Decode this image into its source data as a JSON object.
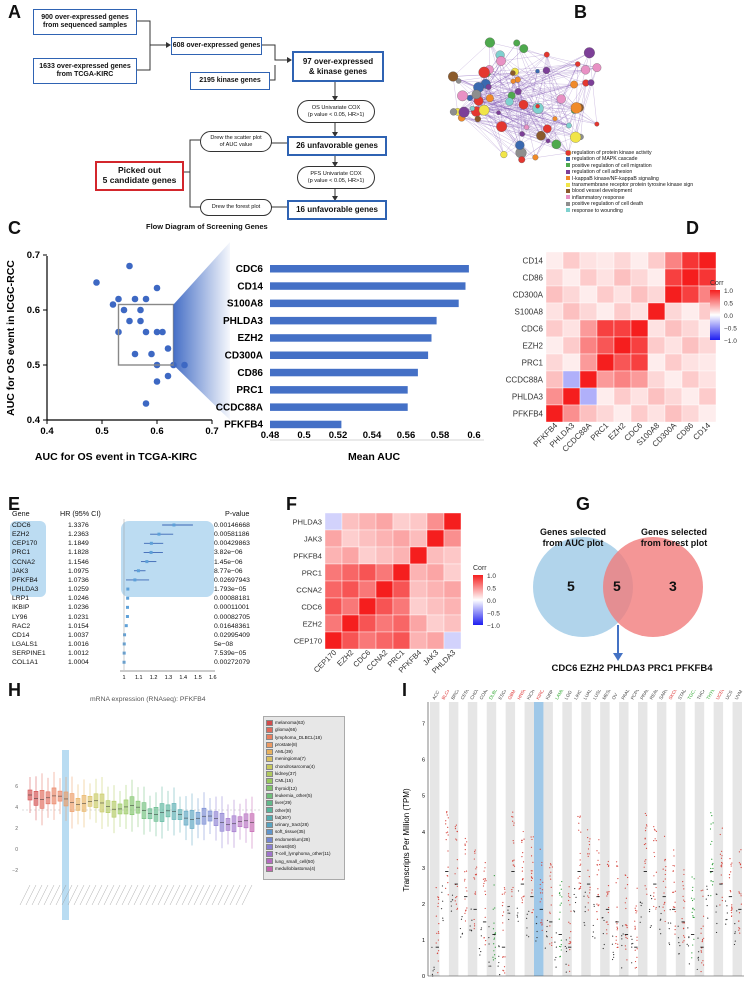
{
  "panelA": {
    "label": "A",
    "boxes": {
      "seq": "900 over-expressed genes\nfrom sequenced samples",
      "tcga": "1633 over-expressed genes\nfrom TCGA-KIRC",
      "overexp": "608 over-expressed genes",
      "kinase": "2195 kinase genes",
      "inter": "97 over-expressed\n& kinase genes",
      "unfav26": "26 unfavorable genes",
      "unfav16": "16 unfavorable genes",
      "picked": "Picked out\n5 candidate genes"
    },
    "ovals": {
      "os": "OS Univariate COX\n(p value < 0.05, HR>1)",
      "scatter": "Drew the scatter plot\nof AUC value",
      "pfs": "PFS Univariate COX\n(p value < 0.05, HR>1)",
      "forest": "Drew the forest plot"
    },
    "caption": "Flow Diagram of Screening Genes"
  },
  "panelB": {
    "label": "B",
    "legend": [
      {
        "text": "regulation of protein kinase activity",
        "color": "#e4362f"
      },
      {
        "text": "regulation of MAPK cascade",
        "color": "#3a69b0"
      },
      {
        "text": "positive regulation of cell migration",
        "color": "#4ea94d"
      },
      {
        "text": "regulation of cell adhesion",
        "color": "#7d3f98"
      },
      {
        "text": "I-kappaB kinase/NF-kappaB signaling",
        "color": "#f08a2a"
      },
      {
        "text": "transmembrane receptor protein tyrosine kinase sign",
        "color": "#f1e548"
      },
      {
        "text": "blood vessel development",
        "color": "#8b5a2b"
      },
      {
        "text": "inflammatory response",
        "color": "#e891c4"
      },
      {
        "text": "positive regulation of cell death",
        "color": "#8e8e8e"
      },
      {
        "text": "response to wounding",
        "color": "#7fd1cf"
      }
    ]
  },
  "panelC": {
    "label": "C",
    "scatter": {
      "ylabel": "AUC for OS event in ICGC-RCC",
      "xlabel": "AUC for OS event in TCGA-KIRC",
      "xticks": [
        "0.4",
        "0.5",
        "0.6",
        "0.7"
      ],
      "yticks": [
        "0.4",
        "0.5",
        "0.6",
        "0.7"
      ]
    },
    "bar": {
      "xlabel": "Mean AUC",
      "xticks": [
        "0.48",
        "0.5",
        "0.52",
        "0.54",
        "0.56",
        "0.58",
        "0.6"
      ]
    }
  },
  "panelD": {
    "label": "D",
    "genes": [
      "PFKFB4",
      "PHLDA3",
      "CCDC88A",
      "PRC1",
      "EZH2",
      "CDC6",
      "S100A8",
      "CD300A",
      "CD86",
      "CD14"
    ],
    "legend_title": "Corr",
    "legend_ticks": [
      "1.0",
      "0.5",
      "0.0",
      "−0.5",
      "−1.0"
    ]
  },
  "panelE": {
    "label": "E",
    "headers": {
      "gene": "Gene",
      "hr": "HR (95% CI)",
      "p": "P-value"
    },
    "rows": [
      {
        "gene": "CDC6",
        "hr": "1.3376",
        "p": "0.00146668"
      },
      {
        "gene": "EZH2",
        "hr": "1.2363",
        "p": "0.00581186"
      },
      {
        "gene": "CEP170",
        "hr": "1.1849",
        "p": "0.00429863"
      },
      {
        "gene": "PRC1",
        "hr": "1.1828",
        "p": "3.82e−06"
      },
      {
        "gene": "CCNA2",
        "hr": "1.1546",
        "p": "1.45e−06"
      },
      {
        "gene": "JAK3",
        "hr": "1.0975",
        "p": "8.77e−06"
      },
      {
        "gene": "PFKFB4",
        "hr": "1.0736",
        "p": "0.02697943"
      },
      {
        "gene": "PHLDA3",
        "hr": "1.0259",
        "p": "1.793e−05"
      },
      {
        "gene": "LRP1",
        "hr": "1.0246",
        "p": "0.00088181"
      },
      {
        "gene": "IKBIP",
        "hr": "1.0236",
        "p": "0.00011001"
      },
      {
        "gene": "LY96",
        "hr": "1.0231",
        "p": "0.00082705"
      },
      {
        "gene": "RAC2",
        "hr": "1.0154",
        "p": "0.01648361"
      },
      {
        "gene": "CD14",
        "hr": "1.0037",
        "p": "0.02995409"
      },
      {
        "gene": "LGALS1",
        "hr": "1.0016",
        "p": "5e−08"
      },
      {
        "gene": "SERPINE1",
        "hr": "1.0012",
        "p": "7.539e−05"
      },
      {
        "gene": "COL1A1",
        "hr": "1.0004",
        "p": "0.00272079"
      }
    ],
    "xticks": [
      "1",
      "1.1",
      "1.2",
      "1.3",
      "1.4",
      "1.5",
      "1.6"
    ]
  },
  "panelF": {
    "label": "F",
    "genes": [
      "CEP170",
      "EZH2",
      "CDC6",
      "CCNA2",
      "PRC1",
      "PFKFB4",
      "JAK3",
      "PHLDA3"
    ],
    "legend_title": "Corr",
    "legend_ticks": [
      "1.0",
      "0.5",
      "0.0",
      "−0.5",
      "−1.0"
    ]
  },
  "panelG": {
    "label": "G",
    "left_title": "Genes selected\nfrom AUC plot",
    "right_title": "Genes selected\nfrom forest plot",
    "left_count": "5",
    "mid_count": "5",
    "right_count": "3",
    "result": "CDC6 EZH2 PHLDA3 PRC1 PFKFB4"
  },
  "panelH": {
    "label": "H",
    "title": "mRNA expression (RNAseq): PFKFB4",
    "legend": [
      {
        "text": "melanoma(63)",
        "color": "#d24b4b"
      },
      {
        "text": "glioma(66)",
        "color": "#e06a5a"
      },
      {
        "text": "lymphoma_DLBCL(18)",
        "color": "#e98060"
      },
      {
        "text": "prostate(8)",
        "color": "#ec9a63"
      },
      {
        "text": "AML(39)",
        "color": "#e8b15e"
      },
      {
        "text": "meningioma(7)",
        "color": "#d9c060"
      },
      {
        "text": "chondrosarcoma(4)",
        "color": "#c6c95e"
      },
      {
        "text": "kidney(37)",
        "color": "#b0c95e"
      },
      {
        "text": "CML(15)",
        "color": "#98c95e"
      },
      {
        "text": "thyroid(12)",
        "color": "#80c46a"
      },
      {
        "text": "leukemia_other(5)",
        "color": "#6fbf7a"
      },
      {
        "text": "liver(29)",
        "color": "#62b98a"
      },
      {
        "text": "other(8)",
        "color": "#58b59c"
      },
      {
        "text": "fat(36?)",
        "color": "#56adb0"
      },
      {
        "text": "urinary_tract(28)",
        "color": "#58a3c0"
      },
      {
        "text": "soft_tissue(35)",
        "color": "#6096cc"
      },
      {
        "text": "endometrium(28)",
        "color": "#7488d2"
      },
      {
        "text": "breast(60)",
        "color": "#8a7ed2"
      },
      {
        "text": "T-cell_lymphoma_other(11)",
        "color": "#a074cc"
      },
      {
        "text": "lung_small_cell(50)",
        "color": "#b46cc0"
      },
      {
        "text": "medulloblastoma(4)",
        "color": "#c464b0"
      }
    ]
  },
  "panelI": {
    "label": "I",
    "ylabel": "Transcripts Per Million (TPM)",
    "yticks": [
      "0",
      "1",
      "2",
      "3",
      "4",
      "5",
      "6",
      "7"
    ],
    "top_labels": [
      {
        "t": "ACC",
        "c": "#444"
      },
      {
        "t": "BLCA",
        "c": "#d33"
      },
      {
        "t": "BRCA",
        "c": "#444"
      },
      {
        "t": "CESC",
        "c": "#444"
      },
      {
        "t": "CHOL",
        "c": "#444"
      },
      {
        "t": "COAD",
        "c": "#444"
      },
      {
        "t": "DLBC",
        "c": "#3a3"
      },
      {
        "t": "ESCA",
        "c": "#444"
      },
      {
        "t": "GBM",
        "c": "#d33"
      },
      {
        "t": "HNSC",
        "c": "#d33"
      },
      {
        "t": "KICH",
        "c": "#444"
      },
      {
        "t": "KIRC",
        "c": "#d33"
      },
      {
        "t": "KIRP",
        "c": "#444"
      },
      {
        "t": "LAML",
        "c": "#3a3"
      },
      {
        "t": "LGG",
        "c": "#444"
      },
      {
        "t": "LIHC",
        "c": "#444"
      },
      {
        "t": "LUAD",
        "c": "#444"
      },
      {
        "t": "LUSC",
        "c": "#444"
      },
      {
        "t": "MESO",
        "c": "#444"
      },
      {
        "t": "OV",
        "c": "#444"
      },
      {
        "t": "PAAD",
        "c": "#444"
      },
      {
        "t": "PCPG",
        "c": "#444"
      },
      {
        "t": "PRAD",
        "c": "#444"
      },
      {
        "t": "READ",
        "c": "#444"
      },
      {
        "t": "SARC",
        "c": "#444"
      },
      {
        "t": "SKCM",
        "c": "#d33"
      },
      {
        "t": "STAD",
        "c": "#444"
      },
      {
        "t": "TGCT",
        "c": "#3a3"
      },
      {
        "t": "THCA",
        "c": "#444"
      },
      {
        "t": "THYM",
        "c": "#3a3"
      },
      {
        "t": "UCEC",
        "c": "#d33"
      },
      {
        "t": "UCS",
        "c": "#444"
      },
      {
        "t": "UVM",
        "c": "#444"
      }
    ]
  }
}
